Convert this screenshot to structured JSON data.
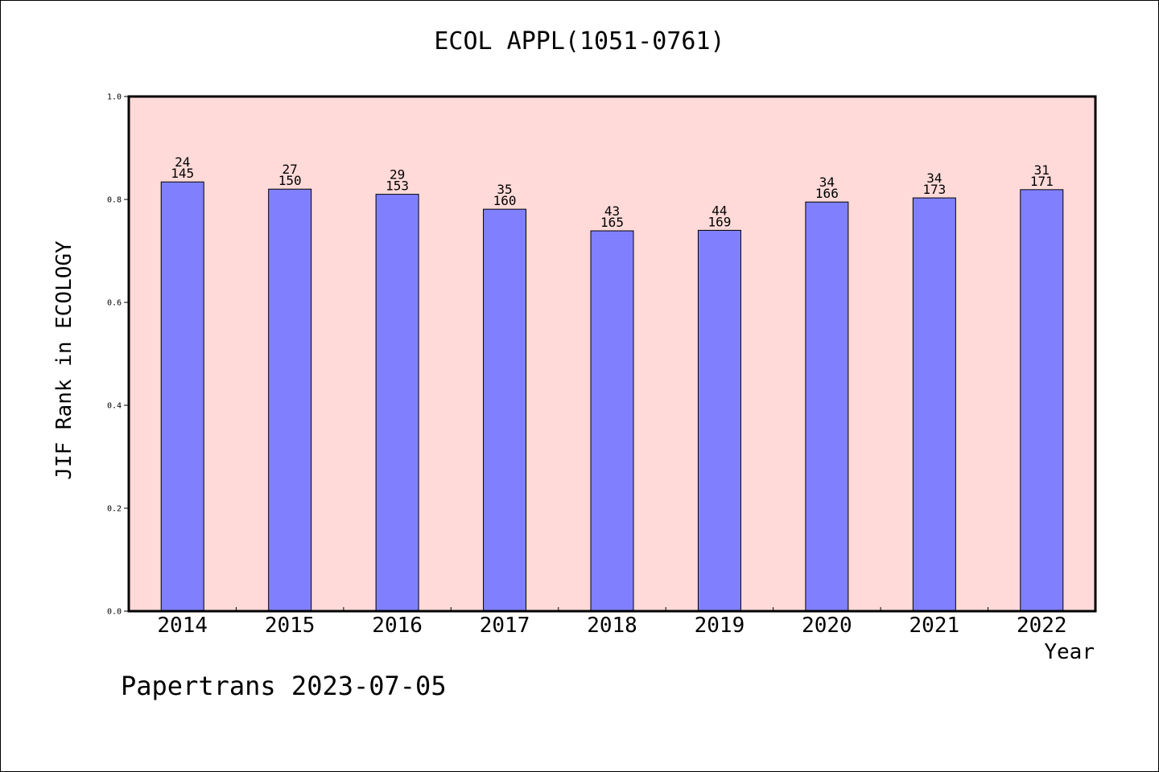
{
  "chart_data": {
    "type": "bar",
    "title": "ECOL APPL(1051-0761)",
    "xlabel": "Year",
    "ylabel": "JIF Rank in ECOLOGY",
    "ylim": [
      0,
      1.0
    ],
    "yticks": [
      "0.0",
      "0.2",
      "0.4",
      "0.6",
      "0.8",
      "1.0"
    ],
    "categories": [
      "2014",
      "2015",
      "2016",
      "2017",
      "2018",
      "2019",
      "2020",
      "2021",
      "2022"
    ],
    "values": [
      0.834,
      0.82,
      0.81,
      0.781,
      0.739,
      0.74,
      0.795,
      0.803,
      0.819
    ],
    "ranks": [
      "24",
      "27",
      "29",
      "35",
      "43",
      "44",
      "34",
      "34",
      "31"
    ],
    "totals": [
      "145",
      "150",
      "153",
      "160",
      "165",
      "169",
      "166",
      "173",
      "171"
    ],
    "colors": {
      "bar": "#8080ff",
      "plot_background": "#ffdad8",
      "axes": "#000000"
    },
    "grid": false
  },
  "footer": {
    "credit": "Papertrans 2023-07-05"
  }
}
